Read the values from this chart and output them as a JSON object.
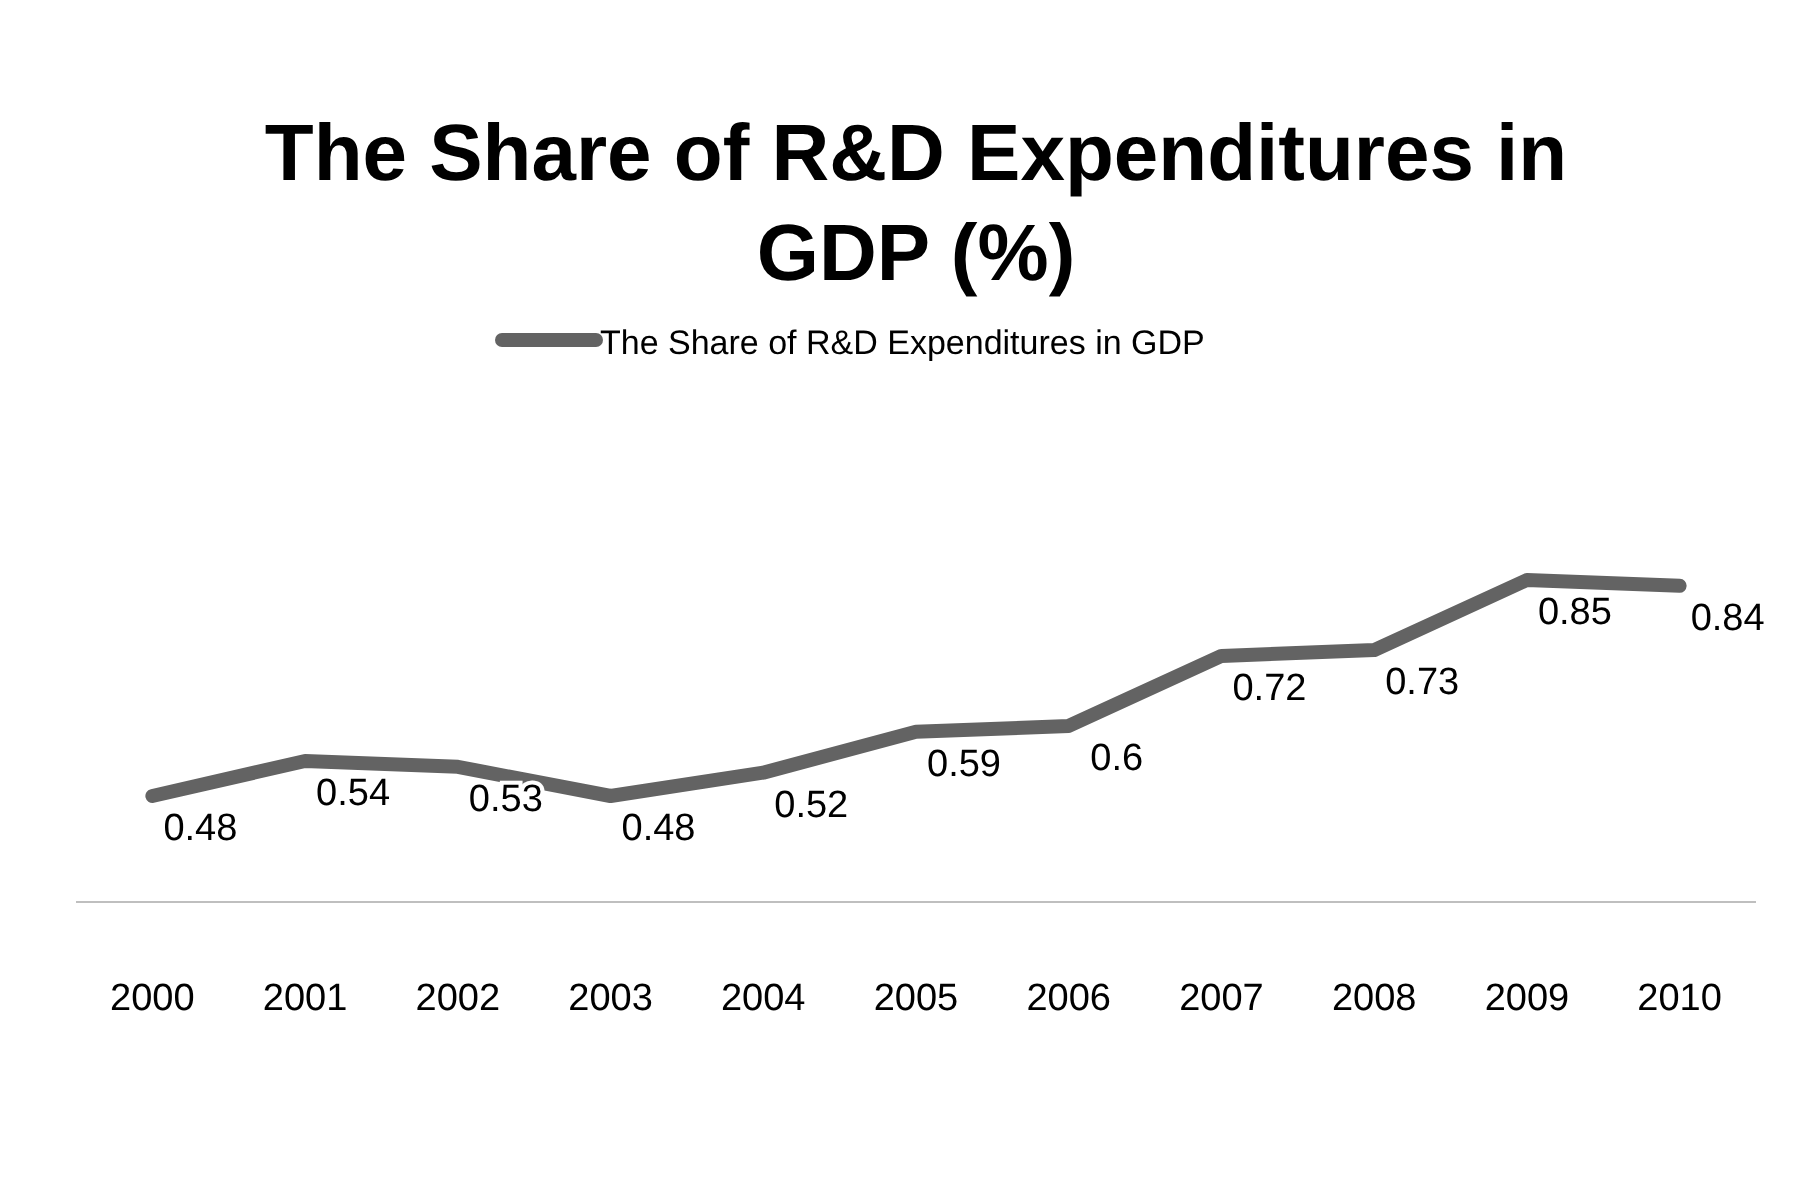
{
  "chart_data": {
    "type": "line",
    "title": "The Share of R&D Expenditures in GDP (%)",
    "categories": [
      "2000",
      "2001",
      "2002",
      "2003",
      "2004",
      "2005",
      "2006",
      "2007",
      "2008",
      "2009",
      "2010"
    ],
    "series": [
      {
        "name": "The Share of R&D Expenditures in GDP",
        "color": "#636363",
        "values": [
          0.48,
          0.54,
          0.53,
          0.48,
          0.52,
          0.59,
          0.6,
          0.72,
          0.73,
          0.85,
          0.84
        ]
      }
    ],
    "data_labels": true,
    "legend": "top",
    "tick_labels": "x",
    "marker": "none"
  }
}
